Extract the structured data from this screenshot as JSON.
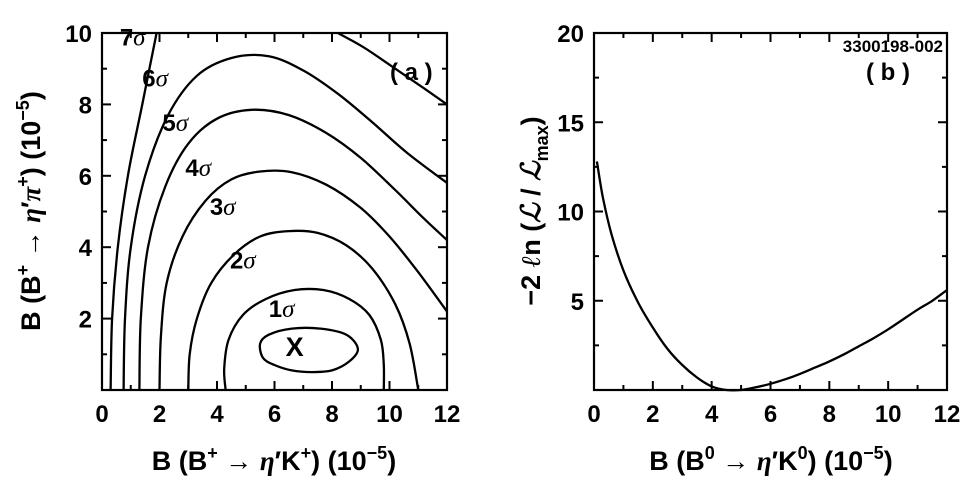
{
  "figure_id": "3300198-002",
  "chart_data": [
    {
      "type": "contour",
      "panel_label": "( a )",
      "xlabel": "B (B⁺ → η′K⁺) (10⁻⁵)",
      "ylabel": "B (B⁺ → η′π⁺) (10⁻⁵)",
      "xlim": [
        0,
        12
      ],
      "ylim": [
        0,
        10
      ],
      "x_ticks": [
        "0",
        "2",
        "4",
        "6",
        "8",
        "10",
        "12"
      ],
      "y_ticks": [
        "2",
        "4",
        "6",
        "8",
        "10"
      ],
      "minimum_marker": {
        "label": "x",
        "x": 6.7,
        "y": 1.2
      },
      "contours": [
        {
          "label": "1σ",
          "points": [
            [
              5.5,
              1.3
            ],
            [
              5.6,
              0.9
            ],
            [
              6.0,
              0.7
            ],
            [
              6.6,
              0.55
            ],
            [
              7.3,
              0.5
            ],
            [
              8.0,
              0.55
            ],
            [
              8.6,
              0.8
            ],
            [
              8.9,
              1.15
            ],
            [
              8.5,
              1.55
            ],
            [
              7.6,
              1.72
            ],
            [
              6.6,
              1.72
            ],
            [
              5.8,
              1.55
            ],
            [
              5.5,
              1.3
            ]
          ],
          "closed": true
        },
        {
          "label": "2σ",
          "points": [
            [
              4.3,
              0
            ],
            [
              4.25,
              0.6
            ],
            [
              4.4,
              1.4
            ],
            [
              4.9,
              2.1
            ],
            [
              5.7,
              2.55
            ],
            [
              6.7,
              2.8
            ],
            [
              7.7,
              2.8
            ],
            [
              8.6,
              2.55
            ],
            [
              9.3,
              2.1
            ],
            [
              9.7,
              1.4
            ],
            [
              9.8,
              0.7
            ],
            [
              9.8,
              0
            ]
          ],
          "closed": false
        },
        {
          "label": "3σ",
          "points": [
            [
              3.0,
              0
            ],
            [
              3.05,
              1.0
            ],
            [
              3.3,
              2.0
            ],
            [
              3.8,
              3.0
            ],
            [
              4.6,
              3.8
            ],
            [
              5.5,
              4.3
            ],
            [
              6.5,
              4.45
            ],
            [
              7.5,
              4.4
            ],
            [
              8.5,
              4.05
            ],
            [
              9.4,
              3.4
            ],
            [
              10.2,
              2.4
            ],
            [
              10.7,
              1.3
            ],
            [
              11.0,
              0
            ]
          ],
          "closed": false
        },
        {
          "label": "4σ",
          "points": [
            [
              2.0,
              0
            ],
            [
              2.05,
              1.5
            ],
            [
              2.25,
              3.0
            ],
            [
              2.8,
              4.3
            ],
            [
              3.6,
              5.3
            ],
            [
              4.5,
              5.9
            ],
            [
              5.5,
              6.12
            ],
            [
              6.6,
              6.1
            ],
            [
              7.8,
              5.75
            ],
            [
              9.0,
              5.1
            ],
            [
              10.0,
              4.3
            ],
            [
              11.0,
              3.3
            ],
            [
              12.0,
              2.2
            ]
          ],
          "closed": false
        },
        {
          "label": "5σ",
          "points": [
            [
              1.3,
              0
            ],
            [
              1.35,
              2.0
            ],
            [
              1.6,
              4.0
            ],
            [
              2.2,
              5.7
            ],
            [
              3.0,
              6.9
            ],
            [
              4.0,
              7.6
            ],
            [
              5.2,
              7.85
            ],
            [
              6.5,
              7.7
            ],
            [
              7.8,
              7.2
            ],
            [
              9.0,
              6.5
            ],
            [
              10.2,
              5.6
            ],
            [
              11.2,
              4.8
            ],
            [
              12.0,
              4.2
            ]
          ],
          "closed": false
        },
        {
          "label": "6σ",
          "points": [
            [
              0.75,
              0
            ],
            [
              0.8,
              2.0
            ],
            [
              1.0,
              4.0
            ],
            [
              1.5,
              6.0
            ],
            [
              2.3,
              7.7
            ],
            [
              3.3,
              8.8
            ],
            [
              4.5,
              9.3
            ],
            [
              5.8,
              9.35
            ],
            [
              7.0,
              8.95
            ],
            [
              8.2,
              8.3
            ],
            [
              9.4,
              7.5
            ],
            [
              10.6,
              6.65
            ],
            [
              12.0,
              5.8
            ]
          ],
          "closed": false
        },
        {
          "label": "7σ",
          "points": [
            [
              0.3,
              0
            ],
            [
              0.35,
              2.0
            ],
            [
              0.55,
              4.0
            ],
            [
              0.9,
              6.0
            ],
            [
              1.4,
              8.0
            ],
            [
              1.9,
              10.0
            ]
          ],
          "closed": false
        },
        {
          "label": "",
          "points": [
            [
              8.2,
              10.0
            ],
            [
              9.1,
              9.6
            ],
            [
              10.2,
              9.0
            ],
            [
              11.2,
              8.45
            ],
            [
              12.0,
              8.0
            ]
          ],
          "closed": false
        }
      ],
      "contour_labels": [
        {
          "text": "1σ",
          "x": 5.8,
          "y": 2.05
        },
        {
          "text": "2σ",
          "x": 4.45,
          "y": 3.4
        },
        {
          "text": "3σ",
          "x": 3.75,
          "y": 4.9
        },
        {
          "text": "4σ",
          "x": 2.9,
          "y": 6.0
        },
        {
          "text": "5σ",
          "x": 2.1,
          "y": 7.25
        },
        {
          "text": "6σ",
          "x": 1.4,
          "y": 8.5
        },
        {
          "text": "7σ",
          "x": 0.62,
          "y": 9.65
        }
      ]
    },
    {
      "type": "line",
      "panel_label": "( b )",
      "xlabel": "B (B⁰ → η′K⁰) (10⁻⁵)",
      "ylabel": "−2 ℓn (ℒ / ℒmax)",
      "xlim": [
        0,
        12
      ],
      "ylim": [
        0,
        20
      ],
      "x_ticks": [
        "0",
        "2",
        "4",
        "6",
        "8",
        "10",
        "12"
      ],
      "y_ticks": [
        "5",
        "10",
        "15",
        "20"
      ],
      "series": [
        {
          "x": [
            0.1,
            0.3,
            0.6,
            1.0,
            1.5,
            2.0,
            2.5,
            3.0,
            3.5,
            4.0,
            4.5,
            5.0,
            5.5,
            6.0,
            6.5,
            7.0,
            7.5,
            8.0,
            8.5,
            9.0,
            9.5,
            10.0,
            10.5,
            11.0,
            11.5,
            12.0
          ],
          "y": [
            12.8,
            10.8,
            8.7,
            6.7,
            4.9,
            3.5,
            2.3,
            1.4,
            0.7,
            0.2,
            0.0,
            0.0,
            0.15,
            0.35,
            0.6,
            0.9,
            1.25,
            1.6,
            2.0,
            2.45,
            2.9,
            3.4,
            3.95,
            4.5,
            5.0,
            5.6
          ]
        }
      ]
    }
  ]
}
